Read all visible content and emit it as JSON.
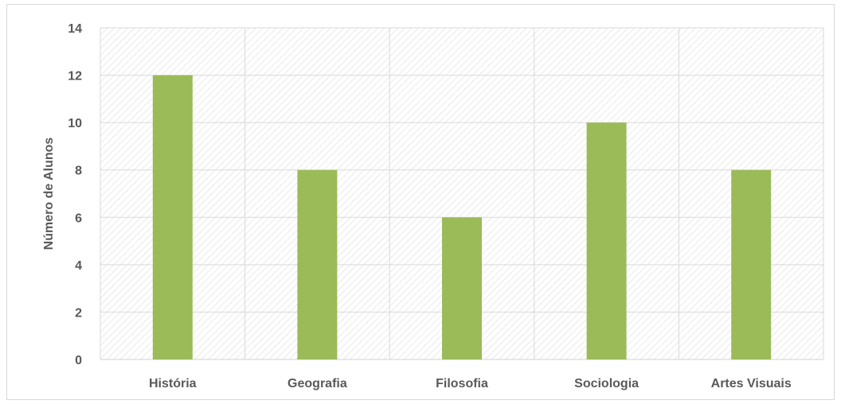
{
  "chart_data": {
    "type": "bar",
    "title": "",
    "xlabel": "",
    "ylabel": "Número de Alunos",
    "categories": [
      "História",
      "Geografia",
      "Filosofia",
      "Sociologia",
      "Artes Visuais"
    ],
    "values": [
      12,
      8,
      6,
      10,
      8
    ],
    "ylim": [
      0,
      14
    ],
    "yticks": [
      0,
      2,
      4,
      6,
      8,
      10,
      12,
      14
    ],
    "grid": true,
    "legend": "none",
    "bar_color": "#9bbb59",
    "grid_color": "#d9d9d9",
    "hatch_color": "#d9d9d9"
  }
}
